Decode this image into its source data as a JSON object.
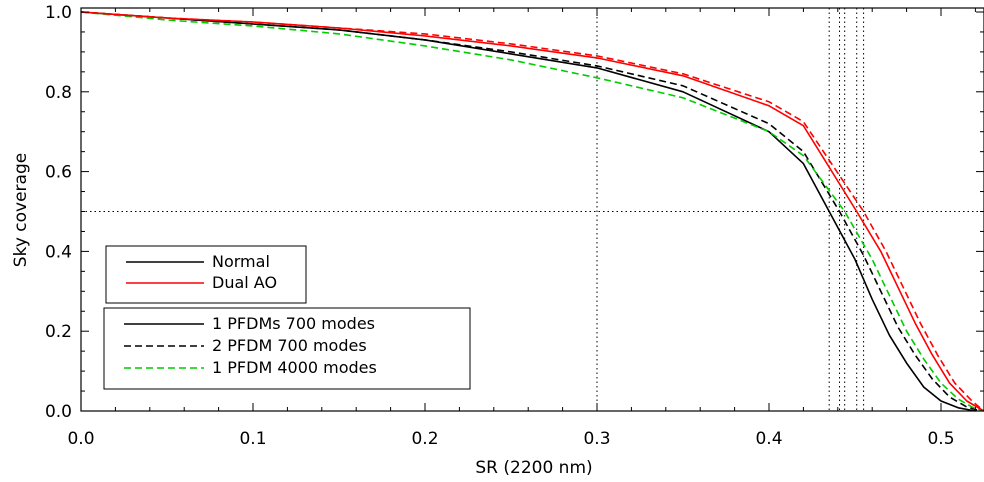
{
  "chart_data": {
    "type": "line",
    "title": "",
    "xlabel": "SR (2200 nm)",
    "ylabel": "Sky coverage",
    "xlim": [
      0.0,
      0.525
    ],
    "ylim": [
      0.0,
      1.01
    ],
    "xticks": [
      {
        "value": 0.0,
        "label": "0.0"
      },
      {
        "value": 0.1,
        "label": "0.1"
      },
      {
        "value": 0.2,
        "label": "0.2"
      },
      {
        "value": 0.3,
        "label": "0.3"
      },
      {
        "value": 0.4,
        "label": "0.4"
      },
      {
        "value": 0.5,
        "label": "0.5"
      }
    ],
    "yticks": [
      {
        "value": 0.0,
        "label": "0.0"
      },
      {
        "value": 0.2,
        "label": "0.2"
      },
      {
        "value": 0.4,
        "label": "0.4"
      },
      {
        "value": 0.6,
        "label": "0.6"
      },
      {
        "value": 0.8,
        "label": "0.8"
      },
      {
        "value": 1.0,
        "label": "1.0"
      }
    ],
    "grid": false,
    "reference_lines": {
      "vertical": [
        0.3,
        0.435,
        0.441,
        0.444,
        0.451,
        0.455
      ],
      "horizontal": [
        0.5
      ]
    },
    "legend_color": {
      "position": "lower-left",
      "entries": [
        {
          "label": "Normal",
          "color": "#000000",
          "dash": "solid"
        },
        {
          "label": "Dual AO",
          "color": "#ff0000",
          "dash": "solid"
        }
      ]
    },
    "legend_style": {
      "position": "lower-left",
      "entries": [
        {
          "label": "1 PFDMs 700 modes",
          "color": "#000000",
          "dash": "solid"
        },
        {
          "label": "2 PFDM 700 modes",
          "color": "#000000",
          "dash": "dashed"
        },
        {
          "label": "1 PFDM 4000 modes",
          "color": "#00cc00",
          "dash": "dashed"
        }
      ]
    },
    "series": [
      {
        "color": "#000000",
        "dash": "solid",
        "points": [
          [
            0.0,
            1.0
          ],
          [
            0.05,
            0.985
          ],
          [
            0.1,
            0.97
          ],
          [
            0.15,
            0.955
          ],
          [
            0.2,
            0.93
          ],
          [
            0.25,
            0.895
          ],
          [
            0.3,
            0.86
          ],
          [
            0.35,
            0.8
          ],
          [
            0.4,
            0.7
          ],
          [
            0.42,
            0.62
          ],
          [
            0.435,
            0.5
          ],
          [
            0.45,
            0.38
          ],
          [
            0.46,
            0.28
          ],
          [
            0.47,
            0.19
          ],
          [
            0.48,
            0.12
          ],
          [
            0.49,
            0.06
          ],
          [
            0.5,
            0.025
          ],
          [
            0.51,
            0.008
          ],
          [
            0.52,
            0.0
          ]
        ]
      },
      {
        "color": "#000000",
        "dash": "dashed",
        "points": [
          [
            0.0,
            1.0
          ],
          [
            0.05,
            0.985
          ],
          [
            0.1,
            0.97
          ],
          [
            0.15,
            0.955
          ],
          [
            0.2,
            0.93
          ],
          [
            0.25,
            0.9
          ],
          [
            0.3,
            0.865
          ],
          [
            0.35,
            0.815
          ],
          [
            0.4,
            0.72
          ],
          [
            0.42,
            0.65
          ],
          [
            0.441,
            0.5
          ],
          [
            0.455,
            0.39
          ],
          [
            0.465,
            0.3
          ],
          [
            0.475,
            0.21
          ],
          [
            0.485,
            0.14
          ],
          [
            0.495,
            0.08
          ],
          [
            0.505,
            0.035
          ],
          [
            0.515,
            0.01
          ],
          [
            0.523,
            0.0
          ]
        ]
      },
      {
        "color": "#00cc00",
        "dash": "dashed",
        "points": [
          [
            0.0,
            1.0
          ],
          [
            0.05,
            0.98
          ],
          [
            0.1,
            0.965
          ],
          [
            0.15,
            0.945
          ],
          [
            0.2,
            0.915
          ],
          [
            0.25,
            0.88
          ],
          [
            0.3,
            0.835
          ],
          [
            0.35,
            0.785
          ],
          [
            0.4,
            0.7
          ],
          [
            0.42,
            0.64
          ],
          [
            0.444,
            0.5
          ],
          [
            0.46,
            0.38
          ],
          [
            0.47,
            0.29
          ],
          [
            0.48,
            0.2
          ],
          [
            0.49,
            0.13
          ],
          [
            0.5,
            0.07
          ],
          [
            0.51,
            0.03
          ],
          [
            0.518,
            0.01
          ],
          [
            0.525,
            0.0
          ]
        ]
      },
      {
        "color": "#ff0000",
        "dash": "solid",
        "points": [
          [
            0.0,
            1.0
          ],
          [
            0.05,
            0.985
          ],
          [
            0.1,
            0.975
          ],
          [
            0.15,
            0.96
          ],
          [
            0.2,
            0.94
          ],
          [
            0.25,
            0.915
          ],
          [
            0.3,
            0.885
          ],
          [
            0.35,
            0.84
          ],
          [
            0.4,
            0.765
          ],
          [
            0.42,
            0.715
          ],
          [
            0.451,
            0.5
          ],
          [
            0.465,
            0.4
          ],
          [
            0.475,
            0.31
          ],
          [
            0.485,
            0.22
          ],
          [
            0.495,
            0.14
          ],
          [
            0.505,
            0.07
          ],
          [
            0.515,
            0.025
          ],
          [
            0.525,
            0.0
          ]
        ]
      },
      {
        "color": "#ff0000",
        "dash": "dashed",
        "points": [
          [
            0.0,
            1.0
          ],
          [
            0.05,
            0.985
          ],
          [
            0.1,
            0.975
          ],
          [
            0.15,
            0.96
          ],
          [
            0.2,
            0.945
          ],
          [
            0.25,
            0.92
          ],
          [
            0.3,
            0.89
          ],
          [
            0.35,
            0.845
          ],
          [
            0.4,
            0.775
          ],
          [
            0.42,
            0.725
          ],
          [
            0.455,
            0.5
          ],
          [
            0.468,
            0.4
          ],
          [
            0.478,
            0.31
          ],
          [
            0.488,
            0.22
          ],
          [
            0.498,
            0.14
          ],
          [
            0.508,
            0.07
          ],
          [
            0.518,
            0.025
          ],
          [
            0.525,
            0.0
          ]
        ]
      }
    ]
  }
}
